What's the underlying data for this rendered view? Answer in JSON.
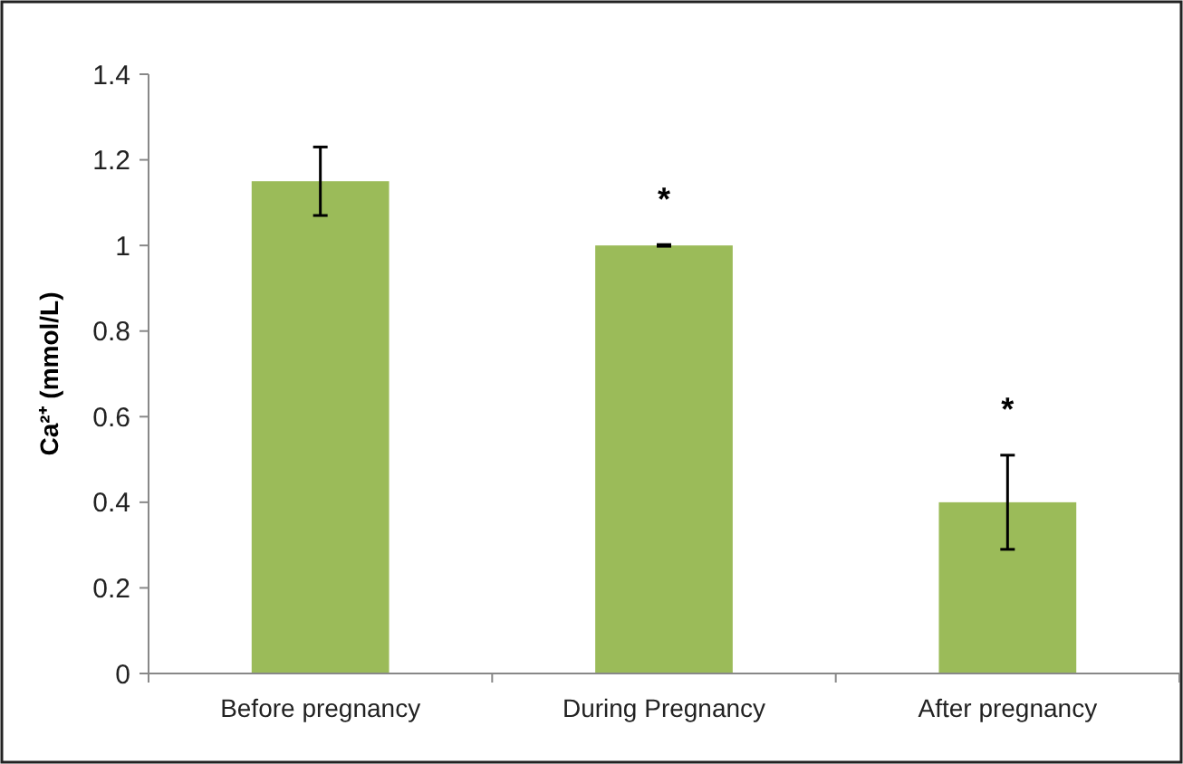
{
  "chart_data": {
    "type": "bar",
    "ylabel": "Ca²⁺ (mmol/L)",
    "categories": [
      "Before pregnancy",
      "During Pregnancy",
      "After pregnancy"
    ],
    "values": [
      1.15,
      1.0,
      0.4
    ],
    "errors": [
      0.08,
      0.002,
      0.11
    ],
    "color": "#9bbb59",
    "ylim": [
      0,
      1.4
    ],
    "yticks": [
      0,
      0.2,
      0.4,
      0.6,
      0.8,
      1,
      1.2,
      1.4
    ],
    "grid": false,
    "annotations": [
      {
        "text": "*",
        "x": "During Pregnancy",
        "y": 1.0
      },
      {
        "text": "*",
        "x": "After pregnancy",
        "y": 0.4
      }
    ]
  }
}
